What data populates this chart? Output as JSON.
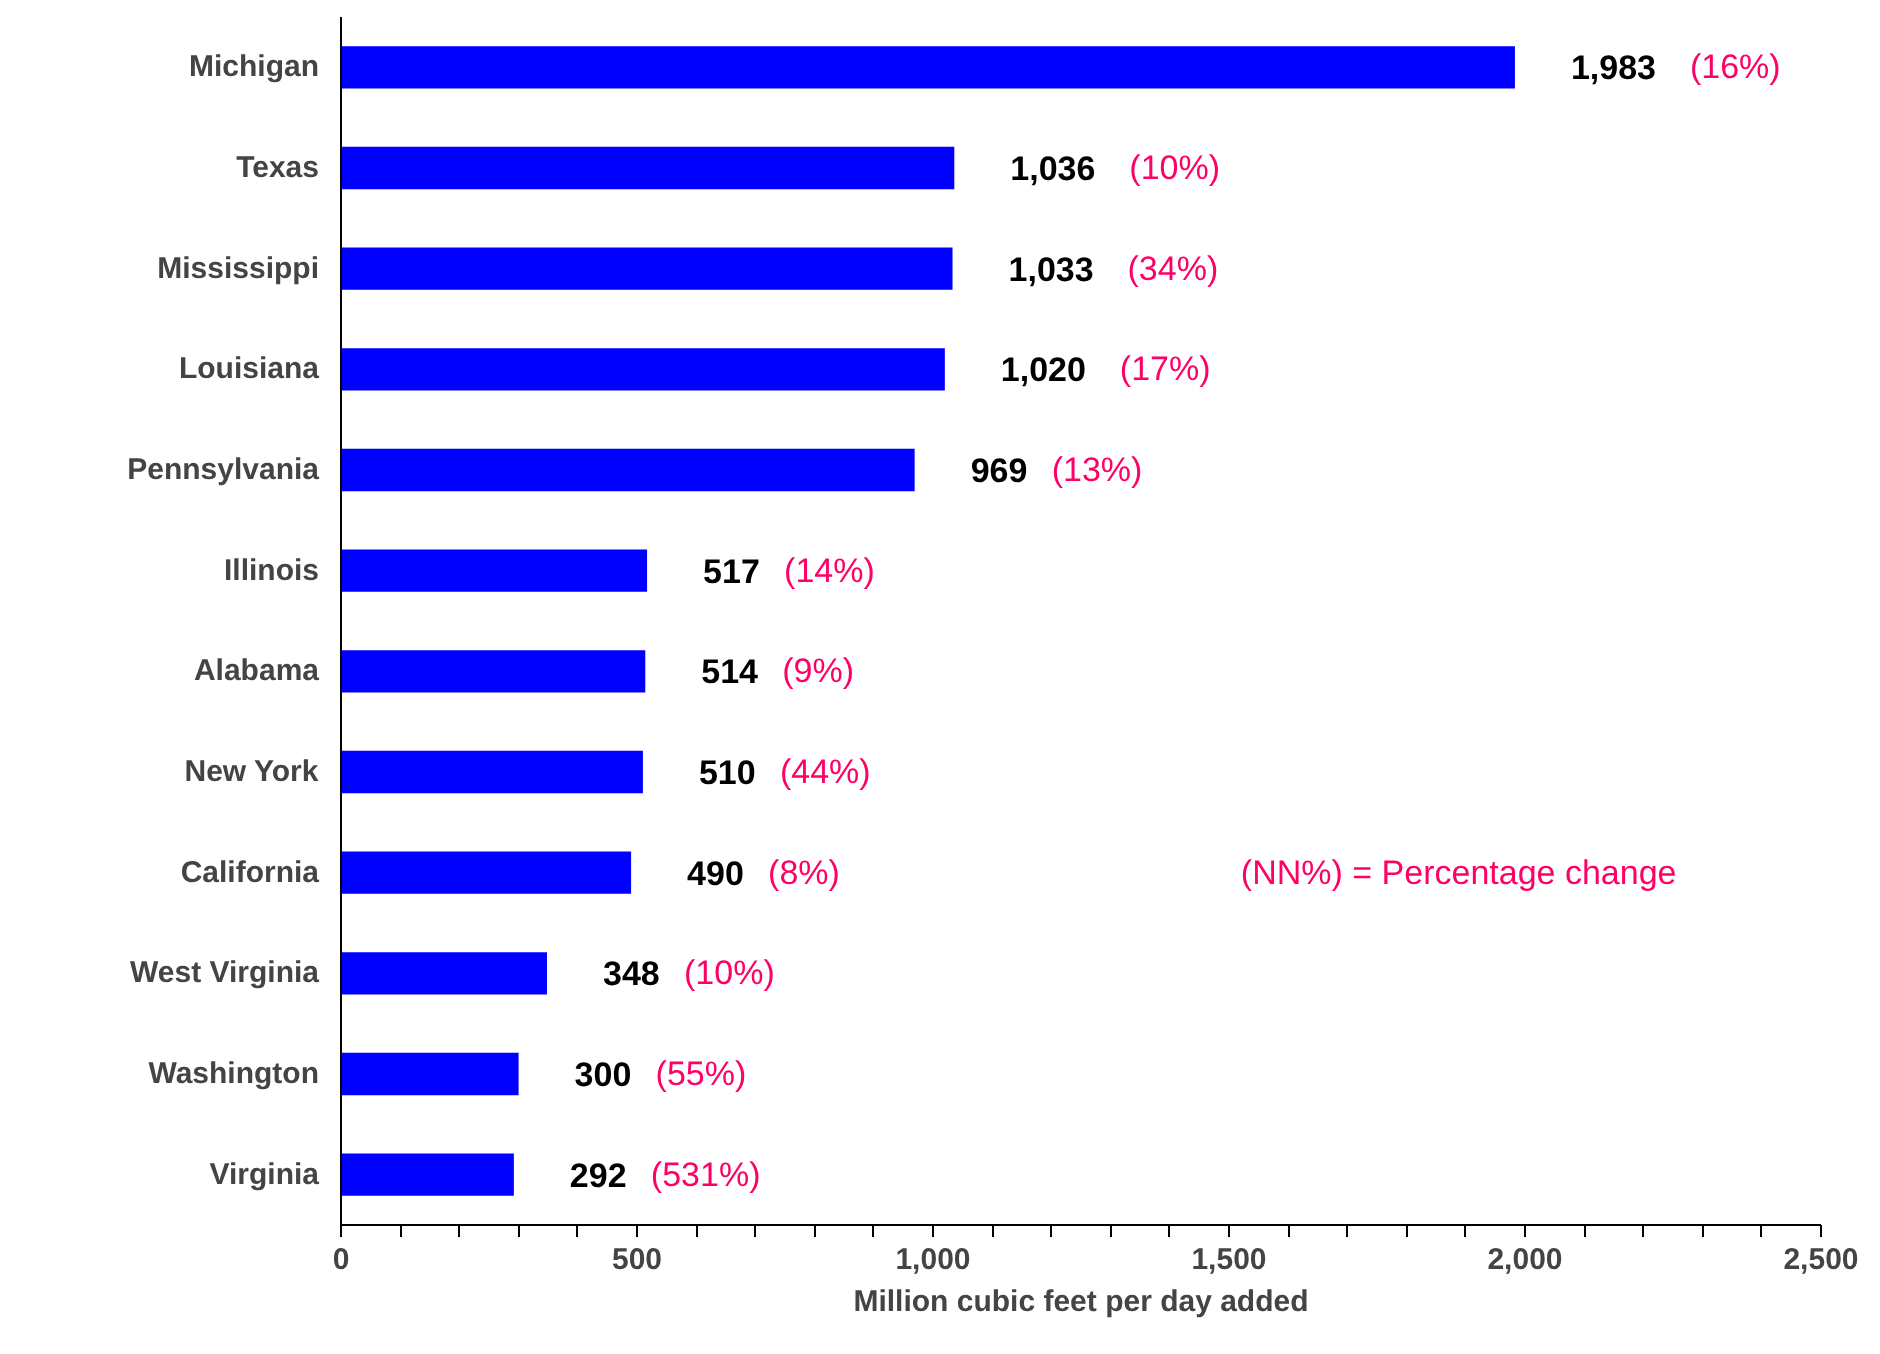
{
  "chart_data": {
    "type": "bar",
    "orientation": "horizontal",
    "xlabel": "Million cubic feet per day added",
    "categories": [
      "Michigan",
      "Texas",
      "Mississippi",
      "Louisiana",
      "Pennsylvania",
      "Illinois",
      "Alabama",
      "New York",
      "California",
      "West Virginia",
      "Washington",
      "Virginia"
    ],
    "values": [
      1983,
      1036,
      1033,
      1020,
      969,
      517,
      514,
      510,
      490,
      348,
      300,
      292
    ],
    "color": "#0000ff",
    "value_labels": [
      "1,983",
      "1,036",
      "1,033",
      "1,020",
      "969",
      "517",
      "514",
      "510",
      "490",
      "348",
      "300",
      "292"
    ],
    "xlim": [
      0,
      2500
    ],
    "xticks": [
      0,
      {
        "value": 100,
        "label": null
      },
      {
        "value": 200,
        "label": null
      },
      {
        "value": 300,
        "label": null
      },
      {
        "value": 400,
        "label": null
      },
      {
        "value": 500,
        "label": "500"
      },
      {
        "value": 600,
        "label": null
      },
      {
        "value": 700,
        "label": null
      },
      {
        "value": 800,
        "label": null
      },
      {
        "value": 900,
        "label": null
      },
      {
        "value": 1000,
        "label": "1,000"
      },
      {
        "value": 1100,
        "label": null
      },
      {
        "value": 1200,
        "label": null
      },
      {
        "value": 1300,
        "label": null
      },
      {
        "value": 1400,
        "label": null
      },
      {
        "value": 1500,
        "label": "1,500"
      },
      {
        "value": 1600,
        "label": null
      },
      {
        "value": 1700,
        "label": null
      },
      {
        "value": 1800,
        "label": null
      },
      {
        "value": 1900,
        "label": null
      },
      {
        "value": 2000,
        "label": "2,000"
      },
      {
        "value": 2100,
        "label": null
      },
      {
        "value": 2200,
        "label": null
      },
      {
        "value": 2300,
        "label": null
      },
      {
        "value": 2400,
        "label": null
      },
      {
        "value": 2500,
        "label": "2,500"
      }
    ],
    "grid": false,
    "annotations": [
      "(16%)",
      "(10%)",
      "(34%)",
      "(17%)",
      "(13%)",
      "(14%)",
      "(9%)",
      "(44%)",
      "(8%)",
      "(10%)",
      "(55%)",
      "(531%)",
      "(NN%) = Percentage change"
    ]
  }
}
